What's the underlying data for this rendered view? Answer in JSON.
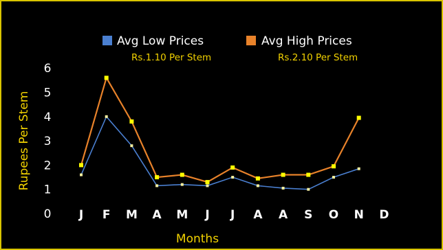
{
  "chart_data": {
    "type": "line",
    "categories": [
      "J",
      "F",
      "M",
      "A",
      "M",
      "J",
      "J",
      "A",
      "A",
      "S",
      "O",
      "N",
      "D"
    ],
    "series": [
      {
        "name": "Avg Low Prices",
        "subtitle": "Rs.1.10 Per Stem",
        "color": "#4a7fd0",
        "values": [
          1.6,
          4.0,
          2.8,
          1.15,
          1.2,
          1.15,
          1.5,
          1.15,
          1.05,
          1.0,
          1.5,
          1.85,
          null
        ]
      },
      {
        "name": "Avg High Prices",
        "subtitle": "Rs.2.10 Per Stem",
        "color": "#e8822a",
        "values": [
          2.0,
          5.6,
          3.8,
          1.5,
          1.6,
          1.3,
          1.9,
          1.45,
          1.6,
          1.6,
          1.95,
          3.95,
          null
        ]
      }
    ],
    "xlabel": "Months",
    "ylabel": "Rupees  Per Stem",
    "ylim": [
      0,
      6
    ],
    "yticks": [
      "0",
      "1",
      "2",
      "3",
      "4",
      "5",
      "6"
    ],
    "grid": false,
    "legend_position": "top",
    "marker_color": "#ffff00"
  }
}
